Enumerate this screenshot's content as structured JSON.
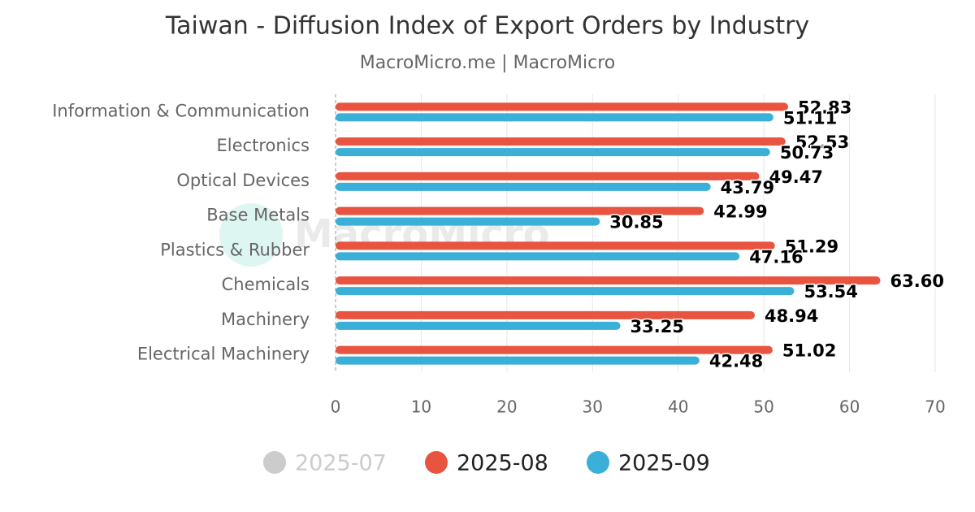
{
  "chart_data": {
    "type": "hbar",
    "title": "Taiwan - Diffusion Index of Export Orders by Industry",
    "subtitle": "MacroMicro.me | MacroMicro",
    "watermark": "MacroMicro",
    "categories": [
      "Information & Communication",
      "Electronics",
      "Optical Devices",
      "Base Metals",
      "Plastics & Rubber",
      "Chemicals",
      "Machinery",
      "Electrical Machinery"
    ],
    "series": [
      {
        "name": "2025-07",
        "color": "#cccccc",
        "visible": false,
        "values": [
          null,
          null,
          null,
          null,
          null,
          null,
          null,
          null
        ]
      },
      {
        "name": "2025-08",
        "color": "#e8543f",
        "visible": true,
        "values": [
          52.83,
          52.53,
          49.47,
          42.99,
          51.29,
          63.6,
          48.94,
          51.02
        ],
        "value_labels": [
          "52.83",
          "52.53",
          "49.47",
          "42.99",
          "51.29",
          "63.60",
          "48.94",
          "51.02"
        ]
      },
      {
        "name": "2025-09",
        "color": "#3aafd8",
        "visible": true,
        "values": [
          51.11,
          50.73,
          43.79,
          30.85,
          47.16,
          53.54,
          33.25,
          42.48
        ]
      }
    ],
    "xlim": [
      0,
      70
    ],
    "xticks": [
      0,
      10,
      20,
      30,
      40,
      50,
      60,
      70
    ],
    "grid": true
  }
}
